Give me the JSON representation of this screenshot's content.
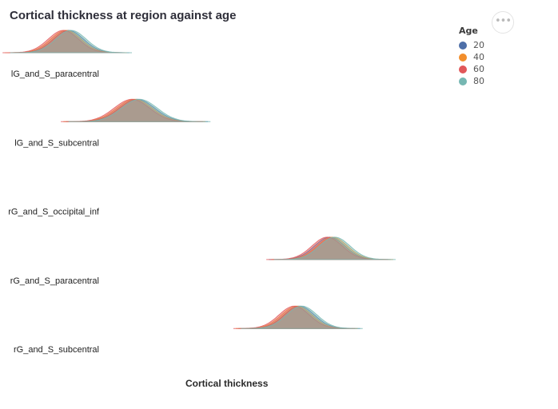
{
  "menu": {
    "icon": "ellipsis-icon",
    "label": "•••"
  },
  "chart_data": {
    "type": "ridgeline",
    "title": "Cortical thickness at region against age",
    "xlabel": "Cortical thickness",
    "ylabel": "",
    "xlim": [
      1.0,
      3.2
    ],
    "legend": {
      "title": "Age",
      "position": "top-right",
      "entries": [
        {
          "label": "20",
          "color": "#4e6fa8"
        },
        {
          "label": "40",
          "color": "#f28e2c"
        },
        {
          "label": "60",
          "color": "#e15759"
        },
        {
          "label": "80",
          "color": "#76b7b2"
        }
      ]
    },
    "categories": [
      "lG_and_S_paracentral",
      "lG_and_S_subcentral",
      "rG_and_S_occipital_inf",
      "rG_and_S_paracentral",
      "rG_and_S_subcentral"
    ],
    "series": [
      {
        "name": "20",
        "centers": [
          1.27,
          1.54,
          null,
          2.3,
          2.18
        ]
      },
      {
        "name": "40",
        "centers": [
          1.26,
          1.53,
          null,
          2.31,
          2.17
        ]
      },
      {
        "name": "60",
        "centers": [
          1.25,
          1.52,
          null,
          2.29,
          2.16
        ]
      },
      {
        "name": "80",
        "centers": [
          1.28,
          1.55,
          null,
          2.32,
          2.19
        ]
      }
    ],
    "spreads": [
      0.06,
      0.07,
      null,
      0.06,
      0.06
    ]
  }
}
